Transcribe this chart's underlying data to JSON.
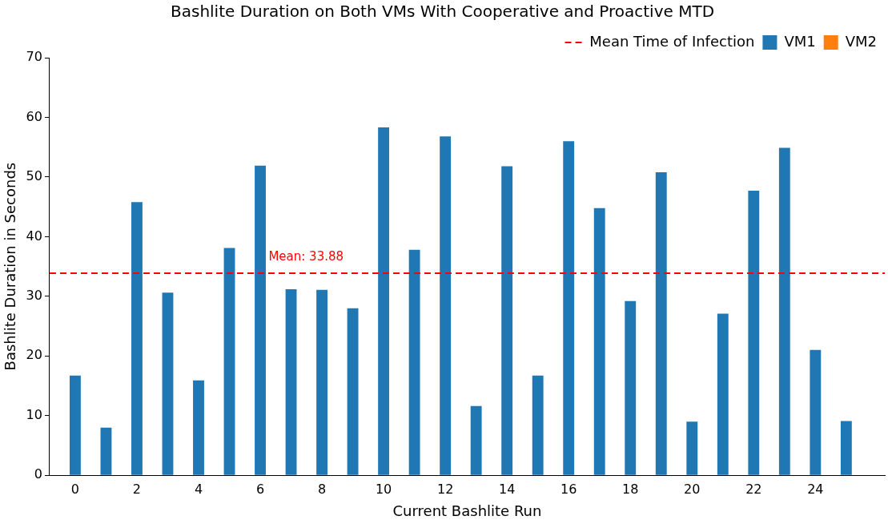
{
  "chart_data": {
    "type": "bar",
    "title": "Bashlite Duration on Both VMs With Cooperative and Proactive MTD",
    "xlabel": "Current Bashlite Run",
    "ylabel": "Bashlite Duration in Seconds",
    "x": [
      0,
      1,
      2,
      3,
      4,
      5,
      6,
      7,
      8,
      9,
      10,
      11,
      12,
      13,
      14,
      15,
      16,
      17,
      18,
      19,
      20,
      21,
      22,
      23,
      24,
      25
    ],
    "series": [
      {
        "name": "VM1",
        "color": "#1f77b4",
        "values": [
          16.7,
          8.0,
          45.8,
          30.6,
          15.9,
          38.1,
          51.9,
          31.2,
          31.1,
          28.0,
          58.3,
          37.8,
          56.8,
          11.6,
          51.8,
          16.7,
          56.0,
          44.8,
          29.2,
          50.8,
          9.0,
          27.1,
          47.7,
          54.9,
          21.0,
          9.1
        ]
      },
      {
        "name": "VM2",
        "color": "#ff7f0e",
        "values": [
          null,
          null,
          null,
          null,
          null,
          null,
          null,
          null,
          null,
          null,
          null,
          null,
          null,
          null,
          null,
          null,
          null,
          null,
          null,
          null,
          null,
          null,
          null,
          null,
          null,
          null
        ]
      }
    ],
    "xlim": [
      -0.83,
      26.25
    ],
    "xticks": [
      0,
      2,
      4,
      6,
      8,
      10,
      12,
      14,
      16,
      18,
      20,
      22,
      24
    ],
    "ylim": [
      0,
      70
    ],
    "yticks": [
      0,
      10,
      20,
      30,
      40,
      50,
      60,
      70
    ],
    "ref_lines": [
      {
        "axis": "y",
        "value": 33.88,
        "label": "Mean Time of Infection",
        "color": "#ff0000",
        "line_style": "dashed"
      }
    ],
    "annotations": [
      {
        "text": "Mean: 33.88",
        "x": 6.27,
        "y": 36.5
      }
    ],
    "grid": false,
    "legend": "top right"
  }
}
